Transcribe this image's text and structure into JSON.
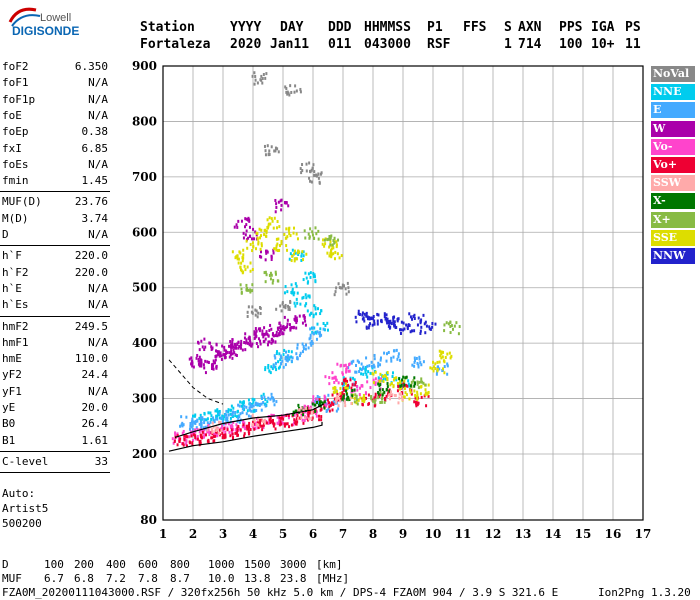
{
  "logo": {
    "top": "Lowell",
    "main": "DIGISONDE"
  },
  "header": {
    "row1": [
      "Station",
      "YYYY",
      "DAY",
      "DDD",
      "HHMMSS",
      "P1",
      "FFS",
      "S",
      "AXN",
      "PPS",
      "IGA",
      "PS"
    ],
    "row2": [
      "Fortaleza",
      "2020",
      "Jan11",
      "011",
      "043000",
      "RSF",
      "1",
      "714",
      "100",
      "10+",
      "11"
    ]
  },
  "params": [
    {
      "k": "foF2",
      "v": "6.350"
    },
    {
      "k": "foF1",
      "v": "N/A"
    },
    {
      "k": "foF1p",
      "v": "N/A"
    },
    {
      "k": "foE",
      "v": "N/A"
    },
    {
      "k": "foEp",
      "v": "0.38"
    },
    {
      "k": "fxI",
      "v": "6.85"
    },
    {
      "k": "foEs",
      "v": "N/A"
    },
    {
      "k": "fmin",
      "v": "1.45"
    },
    {
      "k": "MUF(D)",
      "v": "23.76"
    },
    {
      "k": "M(D)",
      "v": "3.74"
    },
    {
      "k": "D",
      "v": "N/A"
    },
    {
      "k": "h`F",
      "v": "220.0"
    },
    {
      "k": "h`F2",
      "v": "220.0"
    },
    {
      "k": "h`E",
      "v": "N/A"
    },
    {
      "k": "h`Es",
      "v": "N/A"
    },
    {
      "k": "hmF2",
      "v": "249.5"
    },
    {
      "k": "hmF1",
      "v": "N/A"
    },
    {
      "k": "hmE",
      "v": "110.0"
    },
    {
      "k": "yF2",
      "v": "24.4"
    },
    {
      "k": "yF1",
      "v": "N/A"
    },
    {
      "k": "yE",
      "v": "20.0"
    },
    {
      "k": "B0",
      "v": "26.4"
    },
    {
      "k": "B1",
      "v": "1.61"
    },
    {
      "k": "C-level",
      "v": "33"
    }
  ],
  "auto": [
    "Auto:",
    "Artist5",
    "500200"
  ],
  "legend": [
    {
      "label": "NoVal",
      "color": "#888888"
    },
    {
      "label": "NNE",
      "color": "#00ccee"
    },
    {
      "label": "E",
      "color": "#44aaff"
    },
    {
      "label": "W",
      "color": "#aa00aa"
    },
    {
      "label": "Vo-",
      "color": "#ff44cc"
    },
    {
      "label": "Vo+",
      "color": "#ee0033"
    },
    {
      "label": "SSW",
      "color": "#ffaaaa"
    },
    {
      "label": "X-",
      "color": "#007700"
    },
    {
      "label": "X+",
      "color": "#88bb44"
    },
    {
      "label": "SSE",
      "color": "#dddd00"
    },
    {
      "label": "NNW",
      "color": "#2222cc"
    }
  ],
  "footer": {
    "d_label": "D",
    "d_values": [
      "100",
      "200",
      "400",
      "600",
      "800",
      "1000",
      "1500",
      "3000",
      "[km]"
    ],
    "muf_label": "MUF",
    "muf_values": [
      "6.7",
      "6.8",
      "7.2",
      "7.8",
      "8.7",
      "10.0",
      "13.8",
      "23.8",
      "[MHz]"
    ],
    "file_line": "FZA0M_20200111043000.RSF / 320fx256h 50 kHz 5.0 km / DPS-4 FZA0M 904 / 3.9 S 321.6 E",
    "version": "Ion2Png 1.3.20"
  },
  "chart_data": {
    "type": "scatter",
    "xlim": [
      1,
      17
    ],
    "ylim": [
      80,
      900
    ],
    "x_ticks": [
      1,
      2,
      3,
      4,
      5,
      6,
      7,
      8,
      9,
      10,
      11,
      12,
      13,
      14,
      15,
      16,
      17
    ],
    "y_ticks": [
      80,
      200,
      300,
      400,
      500,
      600,
      700,
      800,
      900
    ],
    "grid": true,
    "legend_position": "right",
    "series": [
      {
        "name": "W",
        "color": "#aa00aa",
        "points": [
          [
            2.0,
            370
          ],
          [
            2.2,
            360
          ],
          [
            2.5,
            365
          ],
          [
            2.8,
            380
          ],
          [
            3.0,
            390
          ],
          [
            3.2,
            385
          ],
          [
            3.5,
            400
          ],
          [
            3.8,
            410
          ],
          [
            4.0,
            405
          ],
          [
            4.2,
            420
          ],
          [
            4.5,
            415
          ],
          [
            4.8,
            430
          ],
          [
            5.0,
            425
          ],
          [
            5.2,
            440
          ],
          [
            5.5,
            445
          ],
          [
            3.6,
            620
          ],
          [
            3.9,
            600
          ],
          [
            4.4,
            560
          ],
          [
            4.9,
            650
          ],
          [
            2.4,
            400
          ],
          [
            3.3,
            395
          ],
          [
            4.6,
            410
          ]
        ]
      },
      {
        "name": "NNE",
        "color": "#00ccee",
        "points": [
          [
            2.2,
            265
          ],
          [
            2.6,
            270
          ],
          [
            3.0,
            275
          ],
          [
            3.4,
            280
          ],
          [
            3.8,
            290
          ],
          [
            4.2,
            300
          ],
          [
            4.6,
            360
          ],
          [
            5.0,
            380
          ],
          [
            5.2,
            500
          ],
          [
            5.4,
            560
          ],
          [
            5.6,
            480
          ],
          [
            5.8,
            520
          ],
          [
            6.0,
            460
          ],
          [
            6.2,
            430
          ],
          [
            7.2,
            330
          ],
          [
            7.8,
            350
          ],
          [
            8.4,
            340
          ],
          [
            9.0,
            330
          ]
        ]
      },
      {
        "name": "E",
        "color": "#44aaff",
        "points": [
          [
            1.8,
            260
          ],
          [
            2.1,
            255
          ],
          [
            2.5,
            258
          ],
          [
            2.9,
            265
          ],
          [
            3.3,
            270
          ],
          [
            3.7,
            280
          ],
          [
            4.1,
            285
          ],
          [
            4.5,
            300
          ],
          [
            4.9,
            370
          ],
          [
            5.3,
            380
          ],
          [
            5.7,
            395
          ],
          [
            6.1,
            420
          ],
          [
            6.3,
            300
          ],
          [
            6.6,
            290
          ],
          [
            7.0,
            310
          ],
          [
            7.4,
            360
          ],
          [
            8.0,
            370
          ],
          [
            8.6,
            380
          ],
          [
            9.4,
            370
          ],
          [
            10.2,
            355
          ]
        ]
      },
      {
        "name": "Vo-",
        "color": "#ff44cc",
        "points": [
          [
            1.5,
            230
          ],
          [
            1.9,
            235
          ],
          [
            2.3,
            240
          ],
          [
            2.7,
            245
          ],
          [
            3.1,
            248
          ],
          [
            3.5,
            252
          ],
          [
            3.9,
            255
          ],
          [
            4.3,
            258
          ],
          [
            4.7,
            262
          ],
          [
            5.1,
            265
          ],
          [
            5.5,
            270
          ],
          [
            5.9,
            280
          ],
          [
            6.2,
            300
          ],
          [
            6.6,
            340
          ],
          [
            7.0,
            355
          ],
          [
            7.5,
            320
          ],
          [
            8.0,
            330
          ]
        ]
      },
      {
        "name": "Vo+",
        "color": "#ee0033",
        "points": [
          [
            1.6,
            225
          ],
          [
            2.0,
            228
          ],
          [
            2.4,
            232
          ],
          [
            2.8,
            236
          ],
          [
            3.2,
            240
          ],
          [
            3.6,
            245
          ],
          [
            4.0,
            250
          ],
          [
            4.4,
            255
          ],
          [
            4.8,
            258
          ],
          [
            5.2,
            262
          ],
          [
            5.6,
            268
          ],
          [
            6.0,
            275
          ],
          [
            6.4,
            290
          ],
          [
            6.8,
            310
          ],
          [
            7.2,
            330
          ],
          [
            7.8,
            300
          ],
          [
            8.4,
            310
          ],
          [
            9.0,
            320
          ],
          [
            9.6,
            300
          ]
        ]
      },
      {
        "name": "SSE",
        "color": "#dddd00",
        "points": [
          [
            3.4,
            560
          ],
          [
            3.7,
            540
          ],
          [
            4.0,
            580
          ],
          [
            4.3,
            600
          ],
          [
            4.6,
            620
          ],
          [
            4.9,
            580
          ],
          [
            5.2,
            600
          ],
          [
            5.5,
            560
          ],
          [
            6.5,
            580
          ],
          [
            6.7,
            560
          ],
          [
            6.9,
            320
          ],
          [
            7.5,
            300
          ],
          [
            8.2,
            340
          ],
          [
            8.8,
            330
          ],
          [
            9.2,
            310
          ],
          [
            9.6,
            320
          ],
          [
            10.1,
            360
          ],
          [
            10.4,
            380
          ]
        ]
      },
      {
        "name": "NNW",
        "color": "#2222cc",
        "points": [
          [
            7.6,
            450
          ],
          [
            7.9,
            440
          ],
          [
            8.2,
            445
          ],
          [
            8.5,
            438
          ],
          [
            8.8,
            440
          ],
          [
            9.1,
            430
          ],
          [
            9.4,
            445
          ],
          [
            9.8,
            430
          ]
        ]
      },
      {
        "name": "X+",
        "color": "#88bb44",
        "points": [
          [
            3.8,
            500
          ],
          [
            4.6,
            520
          ],
          [
            5.9,
            600
          ],
          [
            6.6,
            590
          ],
          [
            7.3,
            300
          ],
          [
            8.1,
            305
          ],
          [
            9.5,
            330
          ],
          [
            10.6,
            430
          ]
        ]
      },
      {
        "name": "X-",
        "color": "#007700",
        "points": [
          [
            5.5,
            280
          ],
          [
            6.1,
            290
          ],
          [
            7.1,
            310
          ],
          [
            8.3,
            320
          ],
          [
            9.1,
            335
          ]
        ]
      },
      {
        "name": "SSW",
        "color": "#ffaaaa",
        "points": [
          [
            2.7,
            250
          ],
          [
            4.1,
            265
          ],
          [
            5.7,
            275
          ],
          [
            7.0,
            300
          ],
          [
            8.7,
            305
          ]
        ]
      },
      {
        "name": "NoVal",
        "color": "#888888",
        "points": [
          [
            4.2,
            880
          ],
          [
            4.6,
            750
          ],
          [
            5.3,
            860
          ],
          [
            5.8,
            720
          ],
          [
            6.1,
            700
          ],
          [
            6.9,
            500
          ],
          [
            4.0,
            460
          ],
          [
            5.0,
            470
          ]
        ]
      }
    ],
    "profile": [
      [
        1.2,
        205
      ],
      [
        2.0,
        215
      ],
      [
        3.0,
        222
      ],
      [
        4.0,
        232
      ],
      [
        5.0,
        240
      ],
      [
        6.0,
        248
      ],
      [
        6.3,
        252
      ],
      [
        6.3,
        258
      ]
    ],
    "trace": [
      [
        1.4,
        230
      ],
      [
        2.0,
        240
      ],
      [
        3.0,
        255
      ],
      [
        4.0,
        265
      ],
      [
        5.0,
        270
      ],
      [
        6.0,
        280
      ],
      [
        6.35,
        290
      ]
    ],
    "dashed": [
      [
        1.2,
        370
      ],
      [
        1.6,
        345
      ],
      [
        2.0,
        320
      ],
      [
        2.5,
        300
      ],
      [
        3.0,
        290
      ]
    ]
  }
}
